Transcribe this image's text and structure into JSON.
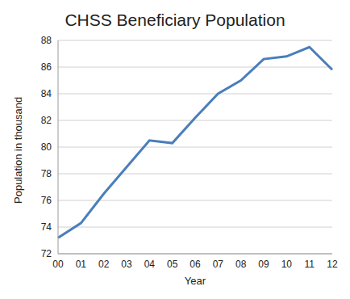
{
  "chart_data": {
    "type": "line",
    "title": "CHSS Beneficiary Population",
    "x_label": "Year",
    "y_label": "Population in thousand",
    "categories": [
      "00",
      "01",
      "02",
      "03",
      "04",
      "05",
      "06",
      "07",
      "08",
      "09",
      "10",
      "11",
      "12"
    ],
    "series": [
      {
        "name": "CHSS Beneficiary Population",
        "color": "#4a7ebb",
        "values": [
          73.2,
          74.3,
          76.5,
          78.5,
          80.5,
          80.3,
          82.2,
          84.0,
          85.0,
          86.6,
          86.8,
          87.5,
          85.8
        ]
      }
    ],
    "ylim": [
      72,
      88
    ],
    "yticks": [
      72,
      74,
      76,
      78,
      80,
      82,
      84,
      86,
      88
    ],
    "grid": true
  }
}
